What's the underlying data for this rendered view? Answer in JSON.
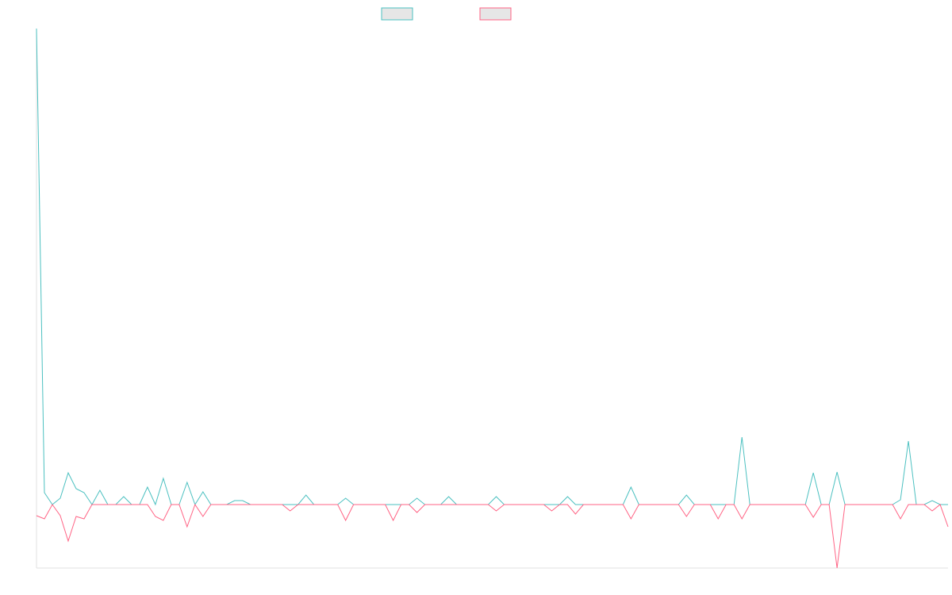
{
  "chart_data": {
    "type": "line",
    "ylim": [
      -80,
      600
    ],
    "series": [
      {
        "color": "#4bc0c0",
        "values": [
          600,
          15,
          0,
          8,
          40,
          20,
          15,
          0,
          18,
          0,
          0,
          10,
          0,
          0,
          22,
          0,
          33,
          0,
          0,
          28,
          0,
          16,
          0,
          0,
          0,
          5,
          5,
          0,
          0,
          0,
          0,
          0,
          0,
          0,
          12,
          0,
          0,
          0,
          0,
          8,
          0,
          0,
          0,
          0,
          0,
          0,
          0,
          0,
          8,
          0,
          0,
          0,
          10,
          0,
          0,
          0,
          0,
          0,
          10,
          0,
          0,
          0,
          0,
          0,
          0,
          0,
          0,
          10,
          0,
          0,
          0,
          0,
          0,
          0,
          0,
          22,
          0,
          0,
          0,
          0,
          0,
          0,
          12,
          0,
          0,
          0,
          0,
          0,
          0,
          85,
          0,
          0,
          0,
          0,
          0,
          0,
          0,
          0,
          40,
          0,
          0,
          41,
          0,
          0,
          0,
          0,
          0,
          0,
          0,
          6,
          80,
          0,
          0,
          5,
          0,
          0
        ]
      },
      {
        "color": "#ff6384",
        "values": [
          -14,
          -18,
          0,
          -14,
          -46,
          -15,
          -18,
          0,
          0,
          0,
          0,
          0,
          0,
          0,
          0,
          -15,
          -20,
          0,
          0,
          -28,
          0,
          -15,
          0,
          0,
          0,
          0,
          0,
          0,
          0,
          0,
          0,
          0,
          -8,
          0,
          0,
          0,
          0,
          0,
          0,
          -20,
          0,
          0,
          0,
          0,
          0,
          -20,
          0,
          0,
          -10,
          0,
          0,
          0,
          0,
          0,
          0,
          0,
          0,
          0,
          -8,
          0,
          0,
          0,
          0,
          0,
          0,
          -8,
          0,
          0,
          -12,
          0,
          0,
          0,
          0,
          0,
          0,
          -18,
          0,
          0,
          0,
          0,
          0,
          0,
          -15,
          0,
          0,
          0,
          -18,
          0,
          0,
          -18,
          0,
          0,
          0,
          0,
          0,
          0,
          0,
          0,
          -16,
          0,
          0,
          -80,
          0,
          0,
          0,
          0,
          0,
          0,
          0,
          -18,
          0,
          0,
          0,
          -8,
          0,
          -28
        ]
      }
    ]
  }
}
